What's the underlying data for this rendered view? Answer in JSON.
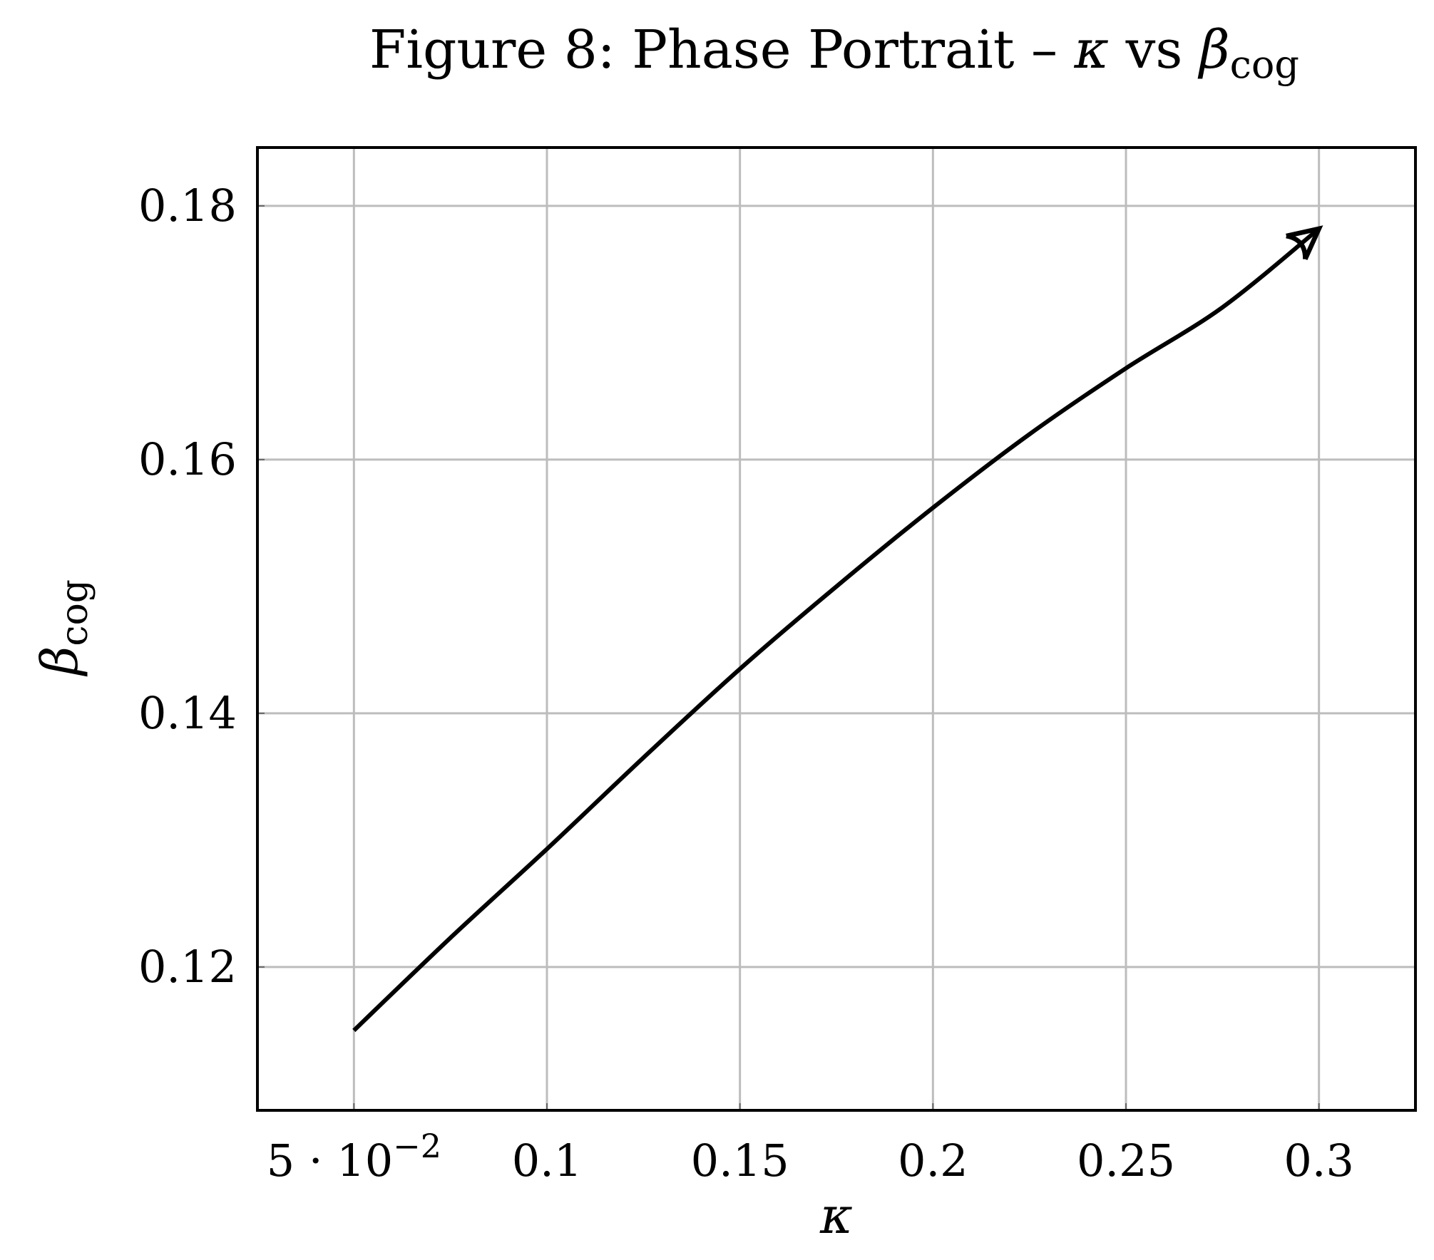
{
  "chart_data": {
    "type": "line",
    "title": {
      "prefix": "Figure 8: Phase Portrait – ",
      "x_symbol": "κ",
      "mid": " vs ",
      "y_symbol": "β",
      "y_subscript": "cog"
    },
    "xlabel": "κ",
    "ylabel": {
      "symbol": "β",
      "subscript": "cog"
    },
    "xlim": [
      0.025,
      0.325
    ],
    "ylim": [
      0.1087,
      0.1846
    ],
    "grid": true,
    "x_ticks": [
      {
        "value": 0.05,
        "label": "5 · 10",
        "exponent": "−2"
      },
      {
        "value": 0.1,
        "label": "0.1"
      },
      {
        "value": 0.15,
        "label": "0.15"
      },
      {
        "value": 0.2,
        "label": "0.2"
      },
      {
        "value": 0.25,
        "label": "0.25"
      },
      {
        "value": 0.3,
        "label": "0.3"
      }
    ],
    "y_ticks": [
      {
        "value": 0.12,
        "label": "0.12"
      },
      {
        "value": 0.14,
        "label": "0.14"
      },
      {
        "value": 0.16,
        "label": "0.16"
      },
      {
        "value": 0.18,
        "label": "0.18"
      }
    ],
    "series": [
      {
        "color": "#000000",
        "arrow_at_end": true,
        "x": [
          0.05,
          0.075,
          0.1,
          0.125,
          0.15,
          0.175,
          0.2,
          0.225,
          0.25,
          0.275,
          0.3
        ],
        "y": [
          0.115,
          0.1223,
          0.1293,
          0.1365,
          0.1435,
          0.15,
          0.1562,
          0.162,
          0.1672,
          0.172,
          0.1782
        ]
      }
    ]
  }
}
